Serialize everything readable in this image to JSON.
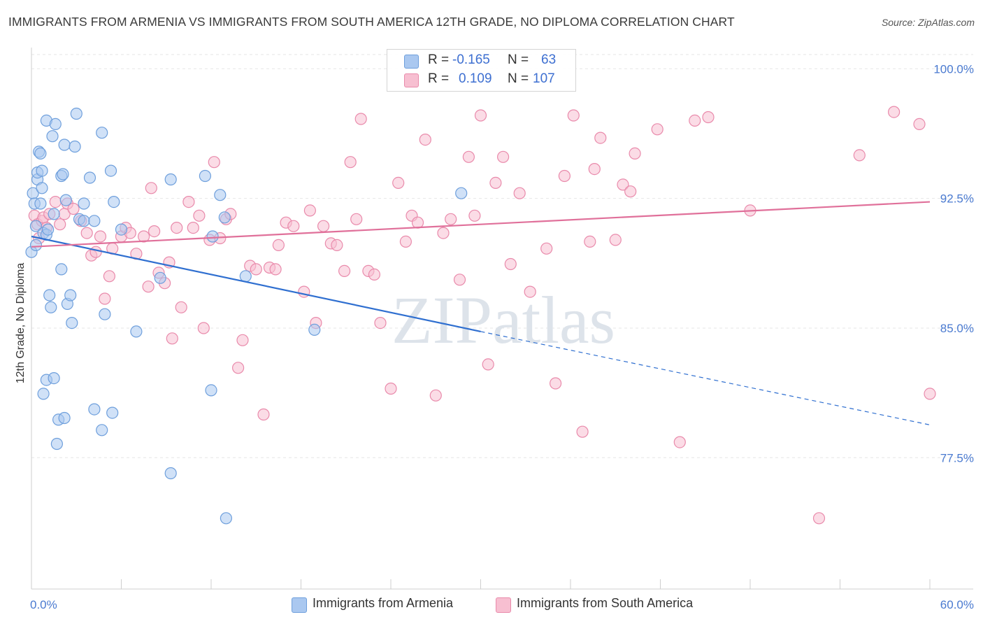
{
  "title": "IMMIGRANTS FROM ARMENIA VS IMMIGRANTS FROM SOUTH AMERICA 12TH GRADE, NO DIPLOMA CORRELATION CHART",
  "source": "Source: ZipAtlas.com",
  "watermark": "ZIPatlas",
  "legend_top": {
    "rows": [
      {
        "r_label": "R =",
        "r_value": "-0.165",
        "n_label": "N =",
        "n_value": "63"
      },
      {
        "r_label": "R =",
        "r_value": "0.109",
        "n_label": "N =",
        "n_value": "107"
      }
    ]
  },
  "legend_bottom": {
    "items": [
      {
        "label": "Immigrants from Armenia"
      },
      {
        "label": "Immigrants from South America"
      }
    ]
  },
  "colors": {
    "armenia_fill": "#aac8f0",
    "armenia_stroke": "#6e9fdc",
    "armenia_line": "#2f6fd0",
    "southam_fill": "#f7bfd1",
    "southam_stroke": "#e98aab",
    "southam_line": "#e0709a",
    "tick_label": "#4a7ad0",
    "grid": "#e6e6e6"
  },
  "chart_data": {
    "type": "scatter",
    "title": "IMMIGRANTS FROM ARMENIA VS IMMIGRANTS FROM SOUTH AMERICA 12TH GRADE, NO DIPLOMA CORRELATION CHART",
    "xlabel": "",
    "ylabel": "12th Grade, No Diploma",
    "xlim": [
      0,
      60
    ],
    "ylim": [
      71.5,
      101.5
    ],
    "x_tick_labels": [
      "0.0%",
      "60.0%"
    ],
    "y_ticks": [
      77.5,
      85.0,
      92.5,
      100.0
    ],
    "y_tick_labels": [
      "77.5%",
      "85.0%",
      "92.5%",
      "100.0%"
    ],
    "grid": true,
    "legend_position": "top-center",
    "series": [
      {
        "name": "Immigrants from Armenia",
        "r": -0.165,
        "n": 63,
        "trend": {
          "x0": 0,
          "y0": 90.3,
          "x1": 30,
          "y1": 84.8,
          "dashed_to_x": 60,
          "dashed_to_y": 79.4
        },
        "points": [
          [
            0.0,
            89.4
          ],
          [
            0.1,
            92.8
          ],
          [
            0.2,
            92.2
          ],
          [
            0.3,
            90.9
          ],
          [
            0.3,
            89.8
          ],
          [
            0.4,
            93.6
          ],
          [
            0.4,
            94.0
          ],
          [
            0.5,
            95.2
          ],
          [
            0.6,
            95.1
          ],
          [
            0.6,
            92.2
          ],
          [
            0.7,
            94.1
          ],
          [
            0.7,
            93.1
          ],
          [
            0.8,
            90.5
          ],
          [
            1.0,
            97.0
          ],
          [
            1.0,
            90.4
          ],
          [
            1.1,
            90.7
          ],
          [
            1.2,
            86.9
          ],
          [
            1.3,
            86.2
          ],
          [
            1.4,
            96.1
          ],
          [
            1.5,
            91.6
          ],
          [
            1.6,
            96.8
          ],
          [
            2.0,
            93.8
          ],
          [
            2.1,
            93.9
          ],
          [
            2.2,
            95.6
          ],
          [
            2.3,
            92.4
          ],
          [
            2.4,
            86.4
          ],
          [
            2.6,
            86.9
          ],
          [
            2.7,
            85.3
          ],
          [
            2.9,
            95.5
          ],
          [
            3.0,
            97.4
          ],
          [
            3.2,
            91.3
          ],
          [
            3.5,
            91.2
          ],
          [
            3.5,
            92.2
          ],
          [
            3.9,
            93.7
          ],
          [
            4.2,
            91.2
          ],
          [
            4.7,
            96.3
          ],
          [
            5.3,
            94.1
          ],
          [
            5.5,
            92.3
          ],
          [
            6.0,
            90.7
          ],
          [
            7.0,
            84.8
          ],
          [
            8.6,
            87.9
          ],
          [
            9.3,
            93.6
          ],
          [
            11.6,
            93.8
          ],
          [
            12.1,
            90.3
          ],
          [
            12.6,
            92.7
          ],
          [
            12.9,
            91.4
          ],
          [
            14.3,
            88.0
          ],
          [
            18.9,
            84.9
          ],
          [
            28.7,
            92.8
          ],
          [
            0.8,
            81.2
          ],
          [
            1.0,
            82.0
          ],
          [
            1.5,
            82.1
          ],
          [
            1.7,
            78.3
          ],
          [
            1.8,
            79.7
          ],
          [
            2.2,
            79.8
          ],
          [
            4.2,
            80.3
          ],
          [
            4.7,
            79.1
          ],
          [
            5.4,
            80.1
          ],
          [
            4.9,
            85.8
          ],
          [
            12.0,
            81.4
          ],
          [
            9.3,
            76.6
          ],
          [
            13.0,
            74.0
          ],
          [
            2.0,
            88.4
          ]
        ]
      },
      {
        "name": "Immigrants from South America",
        "r": 0.109,
        "n": 107,
        "trend": {
          "x0": 0,
          "y0": 89.7,
          "x1": 60,
          "y1": 92.3
        },
        "points": [
          [
            0.2,
            91.5
          ],
          [
            0.4,
            91.0
          ],
          [
            0.5,
            90.2
          ],
          [
            0.7,
            91.2
          ],
          [
            0.8,
            91.4
          ],
          [
            1.0,
            90.8
          ],
          [
            1.2,
            91.6
          ],
          [
            1.6,
            92.3
          ],
          [
            1.9,
            91.0
          ],
          [
            2.2,
            91.6
          ],
          [
            2.4,
            92.2
          ],
          [
            2.8,
            91.9
          ],
          [
            3.3,
            91.2
          ],
          [
            3.7,
            90.5
          ],
          [
            4.0,
            89.2
          ],
          [
            4.3,
            89.4
          ],
          [
            4.6,
            90.3
          ],
          [
            4.9,
            86.7
          ],
          [
            5.2,
            88.0
          ],
          [
            5.4,
            89.6
          ],
          [
            6.0,
            90.3
          ],
          [
            6.3,
            90.8
          ],
          [
            6.6,
            90.5
          ],
          [
            7.0,
            89.3
          ],
          [
            7.5,
            90.3
          ],
          [
            7.8,
            87.4
          ],
          [
            8.0,
            93.1
          ],
          [
            8.2,
            90.6
          ],
          [
            8.5,
            88.2
          ],
          [
            8.9,
            87.6
          ],
          [
            9.2,
            88.8
          ],
          [
            9.4,
            84.4
          ],
          [
            9.7,
            90.8
          ],
          [
            10.0,
            86.2
          ],
          [
            10.5,
            92.3
          ],
          [
            10.8,
            90.8
          ],
          [
            11.2,
            91.5
          ],
          [
            11.5,
            85.0
          ],
          [
            11.9,
            90.1
          ],
          [
            12.2,
            94.6
          ],
          [
            12.6,
            90.2
          ],
          [
            13.0,
            91.3
          ],
          [
            13.3,
            91.6
          ],
          [
            13.8,
            82.7
          ],
          [
            14.1,
            84.3
          ],
          [
            14.6,
            88.6
          ],
          [
            15.0,
            88.4
          ],
          [
            15.5,
            80.0
          ],
          [
            15.9,
            88.5
          ],
          [
            16.3,
            88.4
          ],
          [
            16.5,
            89.8
          ],
          [
            17.0,
            91.1
          ],
          [
            17.5,
            90.9
          ],
          [
            18.2,
            87.1
          ],
          [
            18.6,
            91.8
          ],
          [
            19.0,
            85.3
          ],
          [
            19.5,
            90.9
          ],
          [
            20.0,
            89.9
          ],
          [
            20.4,
            89.8
          ],
          [
            20.9,
            88.3
          ],
          [
            21.3,
            94.6
          ],
          [
            21.7,
            91.3
          ],
          [
            22.0,
            97.1
          ],
          [
            22.5,
            88.3
          ],
          [
            22.9,
            88.1
          ],
          [
            23.3,
            85.3
          ],
          [
            24.0,
            81.5
          ],
          [
            24.5,
            93.4
          ],
          [
            25.0,
            90.0
          ],
          [
            25.4,
            91.5
          ],
          [
            25.8,
            91.1
          ],
          [
            26.3,
            95.9
          ],
          [
            27.0,
            81.1
          ],
          [
            27.5,
            90.5
          ],
          [
            28.0,
            91.3
          ],
          [
            28.6,
            87.8
          ],
          [
            29.2,
            94.9
          ],
          [
            29.6,
            91.5
          ],
          [
            30.0,
            97.3
          ],
          [
            30.5,
            82.9
          ],
          [
            31.0,
            93.4
          ],
          [
            31.5,
            94.9
          ],
          [
            32.0,
            88.7
          ],
          [
            32.6,
            92.8
          ],
          [
            33.3,
            87.1
          ],
          [
            34.4,
            89.6
          ],
          [
            35.0,
            81.8
          ],
          [
            35.6,
            93.8
          ],
          [
            36.2,
            97.3
          ],
          [
            36.8,
            79.0
          ],
          [
            37.3,
            90.0
          ],
          [
            37.6,
            94.2
          ],
          [
            38.0,
            96.0
          ],
          [
            39.0,
            90.1
          ],
          [
            39.5,
            93.3
          ],
          [
            40.0,
            92.9
          ],
          [
            40.3,
            95.1
          ],
          [
            41.8,
            96.5
          ],
          [
            43.3,
            78.4
          ],
          [
            44.3,
            97.0
          ],
          [
            45.2,
            97.2
          ],
          [
            48.0,
            91.8
          ],
          [
            52.6,
            74.0
          ],
          [
            55.3,
            95.0
          ],
          [
            57.6,
            97.5
          ],
          [
            60.0,
            81.2
          ],
          [
            59.3,
            96.8
          ]
        ]
      }
    ]
  }
}
